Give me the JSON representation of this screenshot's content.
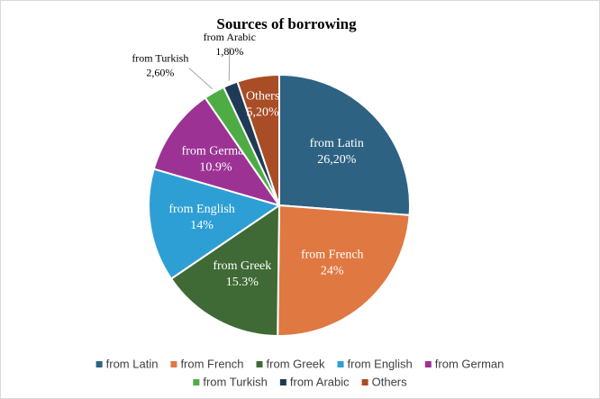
{
  "chart_data": {
    "type": "pie",
    "title": "Sources of borrowing",
    "categories": [
      "from Latin",
      "from French",
      "from Greek",
      "from English",
      "from German",
      "from Turkish",
      "from Arabic",
      "Others"
    ],
    "values": [
      26.2,
      24,
      15.3,
      14,
      10.9,
      2.6,
      1.8,
      5.2
    ],
    "value_labels": [
      "26,20%",
      "24%",
      "15.3%",
      "14%",
      "10.9%",
      "2,60%",
      "1,80%",
      "5,20%"
    ],
    "colors": [
      "#2e6283",
      "#e07842",
      "#3f6a35",
      "#2e9fd4",
      "#9c3394",
      "#4eac45",
      "#1f3a55",
      "#a84d26"
    ],
    "legend": "bottom"
  }
}
